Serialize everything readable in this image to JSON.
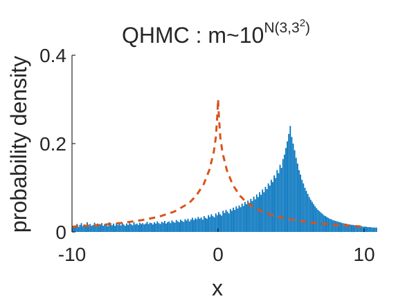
{
  "chart_data": {
    "type": "bar",
    "title": {
      "main": "QHMC : m~10",
      "sup": "N(3,3",
      "sup2": "2",
      "sup_end": ")"
    },
    "xlabel": "x",
    "ylabel": "probability density",
    "xlim": [
      -10,
      10
    ],
    "ylim": [
      0,
      0.4
    ],
    "xticks": [
      -10,
      0,
      10
    ],
    "xtick_labels": [
      "-10",
      "0",
      "10"
    ],
    "yticks": [
      0,
      0.2,
      0.4
    ],
    "ytick_labels": [
      "0",
      "0.2",
      "0.4"
    ],
    "grid": false,
    "series": [
      {
        "kind": "histogram",
        "color": "#0072BD",
        "bin_width": 0.1,
        "values": [
          0.012,
          0.01,
          0.014,
          0.018,
          0.011,
          0.016,
          0.02,
          0.013,
          0.017,
          0.015,
          0.022,
          0.012,
          0.018,
          0.014,
          0.016,
          0.021,
          0.013,
          0.019,
          0.015,
          0.017,
          0.02,
          0.014,
          0.018,
          0.016,
          0.013,
          0.022,
          0.017,
          0.015,
          0.019,
          0.014,
          0.02,
          0.016,
          0.018,
          0.015,
          0.021,
          0.017,
          0.014,
          0.019,
          0.016,
          0.02,
          0.018,
          0.015,
          0.022,
          0.017,
          0.019,
          0.016,
          0.021,
          0.018,
          0.02,
          0.017,
          0.019,
          0.023,
          0.018,
          0.021,
          0.02,
          0.017,
          0.022,
          0.019,
          0.024,
          0.02,
          0.018,
          0.023,
          0.021,
          0.025,
          0.019,
          0.022,
          0.024,
          0.02,
          0.026,
          0.023,
          0.021,
          0.027,
          0.024,
          0.022,
          0.028,
          0.025,
          0.023,
          0.029,
          0.026,
          0.03,
          0.024,
          0.028,
          0.032,
          0.027,
          0.031,
          0.029,
          0.034,
          0.03,
          0.033,
          0.028,
          0.036,
          0.032,
          0.03,
          0.038,
          0.034,
          0.04,
          0.036,
          0.033,
          0.042,
          0.038,
          0.045,
          0.04,
          0.037,
          0.048,
          0.043,
          0.05,
          0.046,
          0.042,
          0.052,
          0.048,
          0.055,
          0.05,
          0.058,
          0.053,
          0.06,
          0.056,
          0.064,
          0.059,
          0.068,
          0.063,
          0.071,
          0.066,
          0.075,
          0.07,
          0.08,
          0.074,
          0.085,
          0.079,
          0.09,
          0.084,
          0.096,
          0.09,
          0.102,
          0.097,
          0.11,
          0.105,
          0.118,
          0.113,
          0.128,
          0.122,
          0.14,
          0.133,
          0.152,
          0.145,
          0.165,
          0.175,
          0.19,
          0.205,
          0.222,
          0.24,
          0.215,
          0.2,
          0.185,
          0.168,
          0.155,
          0.14,
          0.13,
          0.118,
          0.11,
          0.1,
          0.093,
          0.086,
          0.079,
          0.073,
          0.068,
          0.063,
          0.058,
          0.054,
          0.05,
          0.047,
          0.044,
          0.041,
          0.038,
          0.036,
          0.034,
          0.032,
          0.03,
          0.029,
          0.027,
          0.026,
          0.025,
          0.024,
          0.023,
          0.022,
          0.021,
          0.02,
          0.019,
          0.019,
          0.018,
          0.017,
          0.017,
          0.016,
          0.016,
          0.015,
          0.015,
          0.014,
          0.014,
          0.013,
          0.013,
          0.012,
          0.012,
          0.012,
          0.011,
          0.011,
          0.011,
          0.01,
          0.01,
          0.01,
          0.01
        ]
      },
      {
        "kind": "dashed-line",
        "color": "#D95319",
        "x": [
          -10,
          -9,
          -8,
          -7,
          -6,
          -5,
          -4,
          -3,
          -2,
          -1.5,
          -1,
          -0.6,
          -0.3,
          -0.15,
          -0.05,
          0,
          0.05,
          0.15,
          0.3,
          0.6,
          1,
          1.5,
          2,
          3,
          4,
          5,
          6,
          7,
          8,
          9,
          10
        ],
        "y": [
          0.012,
          0.014,
          0.016,
          0.019,
          0.023,
          0.028,
          0.035,
          0.046,
          0.065,
          0.082,
          0.107,
          0.14,
          0.18,
          0.215,
          0.265,
          0.3,
          0.265,
          0.215,
          0.18,
          0.14,
          0.107,
          0.082,
          0.065,
          0.046,
          0.035,
          0.028,
          0.023,
          0.019,
          0.016,
          0.014,
          0.012
        ]
      }
    ]
  }
}
